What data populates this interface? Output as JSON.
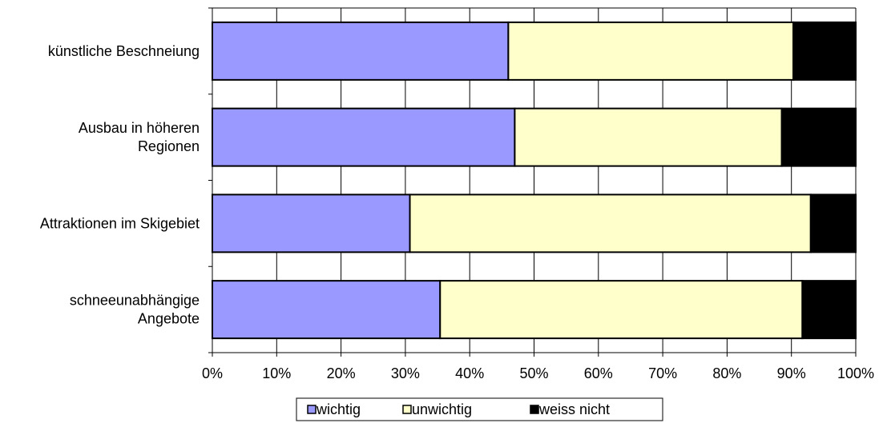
{
  "chart_data": {
    "type": "bar",
    "orientation": "horizontal",
    "stacked": true,
    "normalized_percent": true,
    "categories": [
      [
        "künstliche Beschneiung"
      ],
      [
        "Ausbau in höheren",
        "Regionen"
      ],
      [
        "Attraktionen im Skigebiet"
      ],
      [
        "schneeunabhängige",
        "Angebote"
      ]
    ],
    "series": [
      {
        "name": "wichtig",
        "color": "#9999ff",
        "values": [
          46,
          47,
          30.7,
          35.4
        ]
      },
      {
        "name": "unwichtig",
        "color": "#ffffcc",
        "values": [
          44.3,
          41.5,
          62.3,
          56.3
        ]
      },
      {
        "name": "weiss nicht",
        "color": "#000000",
        "values": [
          9.7,
          11.5,
          7,
          8.3
        ]
      }
    ],
    "xlim": [
      0,
      100
    ],
    "x_ticks": [
      "0%",
      "10%",
      "20%",
      "30%",
      "40%",
      "50%",
      "60%",
      "70%",
      "80%",
      "90%",
      "100%"
    ],
    "grid": "vertical",
    "legend_position": "bottom"
  }
}
